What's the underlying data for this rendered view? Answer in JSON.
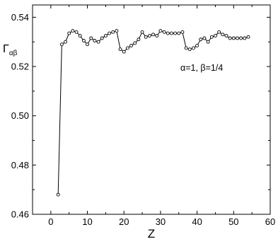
{
  "chart_data": {
    "type": "line",
    "title": "",
    "xlabel": "Z",
    "ylabel": "Γ",
    "ylabel_subscript": "αβ",
    "xlim": [
      -5,
      60
    ],
    "ylim": [
      0.46,
      0.545
    ],
    "x_ticks": [
      0,
      10,
      20,
      30,
      40,
      50,
      60
    ],
    "x_tick_labels": [
      "0",
      "10",
      "20",
      "30",
      "40",
      "50",
      "60"
    ],
    "y_ticks": [
      0.46,
      0.48,
      0.5,
      0.52,
      0.54
    ],
    "y_tick_labels": [
      "0.46",
      "0.48",
      "0.50",
      "0.52",
      "0.54"
    ],
    "grid": false,
    "legend": "none",
    "annotation": "α=1, β=1/4",
    "marker": "open-circle",
    "color": "#000000",
    "series": [
      {
        "x": [
          2,
          3,
          4,
          5,
          6,
          7,
          8,
          9,
          10,
          11,
          12,
          13,
          14,
          15,
          16,
          17,
          18,
          19,
          20,
          21,
          22,
          23,
          24,
          25,
          26,
          27,
          28,
          29,
          30,
          31,
          32,
          33,
          34,
          35,
          36,
          37,
          38,
          39,
          40,
          41,
          42,
          43,
          44,
          45,
          46,
          47,
          48,
          49,
          50,
          51,
          52,
          53,
          54
        ],
        "y": [
          0.468,
          0.529,
          0.53,
          0.5335,
          0.5345,
          0.534,
          0.5325,
          0.5305,
          0.529,
          0.5315,
          0.5305,
          0.53,
          0.5315,
          0.5325,
          0.5335,
          0.534,
          0.5345,
          0.527,
          0.526,
          0.5275,
          0.5285,
          0.5295,
          0.531,
          0.534,
          0.532,
          0.5325,
          0.533,
          0.5325,
          0.5345,
          0.534,
          0.5335,
          0.5335,
          0.5335,
          0.5335,
          0.534,
          0.5275,
          0.527,
          0.5275,
          0.5285,
          0.531,
          0.5315,
          0.53,
          0.532,
          0.5325,
          0.534,
          0.533,
          0.5325,
          0.5315,
          0.5315,
          0.5315,
          0.5315,
          0.5315,
          0.532
        ]
      }
    ]
  }
}
